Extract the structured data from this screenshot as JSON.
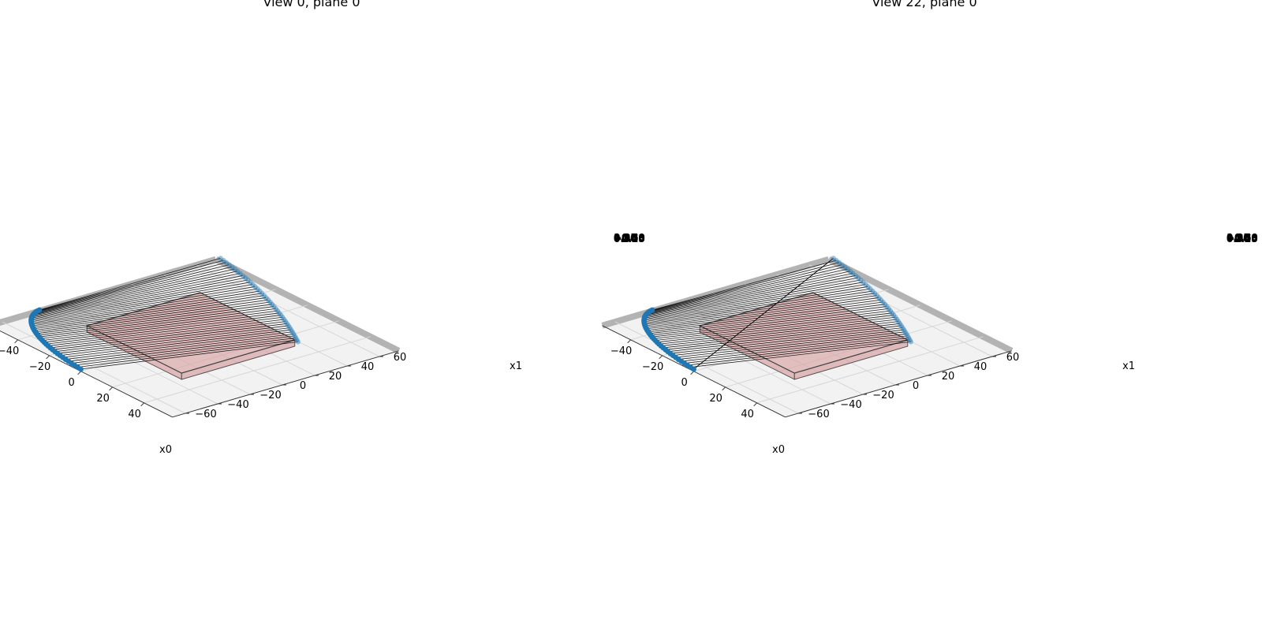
{
  "chart_data": [
    {
      "type": "scatter",
      "title": "View 0, plane 0",
      "xlabel": "x0",
      "ylabel": "x1",
      "x_ticks": [
        "−40",
        "−20",
        "0",
        "20",
        "40"
      ],
      "y_ticks": [
        "−60",
        "−40",
        "−20",
        "0",
        "20",
        "40",
        "60"
      ],
      "z_ticks": [
        "1.00",
        "0.75",
        "0.50",
        "0.25",
        "0.00",
        "−0.25",
        "−0.50",
        "−0.75",
        "−1.00"
      ],
      "xlim": [
        -55,
        55
      ],
      "ylim": [
        -70,
        70
      ],
      "projection": "3d",
      "grid": true,
      "plane": {
        "x": [
          -30,
          30
        ],
        "y": [
          -35,
          35
        ],
        "color": "#d9a3a3"
      },
      "point_color": "#1f77b4",
      "line_pairing": "parallel"
    },
    {
      "type": "scatter",
      "title": "View 22, plane 0",
      "xlabel": "x0",
      "ylabel": "x1",
      "x_ticks": [
        "−40",
        "−20",
        "0",
        "20",
        "40"
      ],
      "y_ticks": [
        "−60",
        "−40",
        "−20",
        "0",
        "20",
        "40",
        "60"
      ],
      "z_ticks": [
        "1.00",
        "0.75",
        "0.50",
        "0.25",
        "0.00",
        "−0.25",
        "−0.50",
        "−0.75",
        "−1.00"
      ],
      "xlim": [
        -55,
        55
      ],
      "ylim": [
        -70,
        70
      ],
      "projection": "3d",
      "grid": true,
      "plane": {
        "x": [
          -30,
          30
        ],
        "y": [
          -35,
          35
        ],
        "color": "#d9a3a3"
      },
      "point_color": "#1f77b4",
      "line_pairing": "shifted"
    }
  ]
}
